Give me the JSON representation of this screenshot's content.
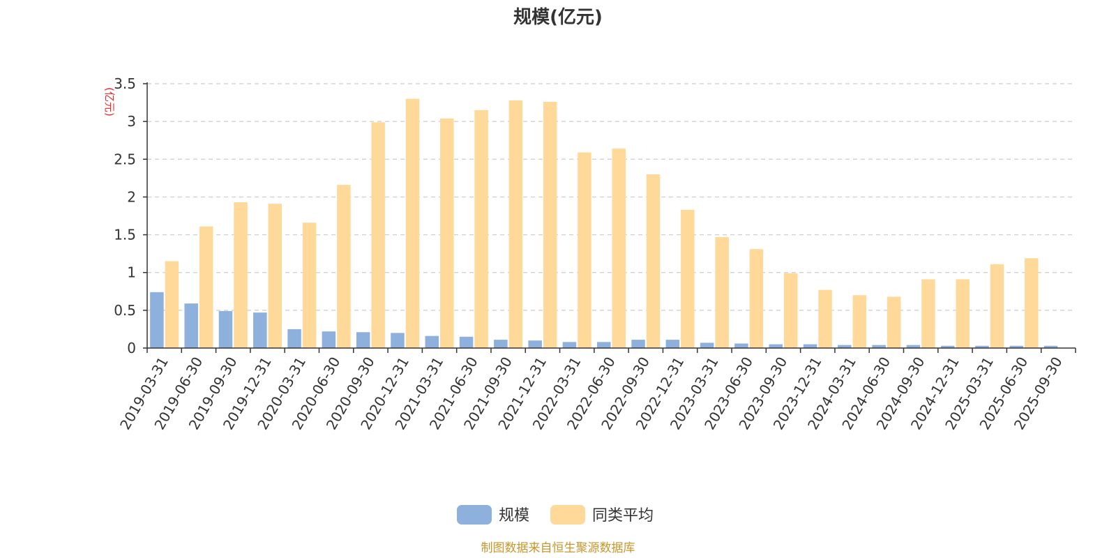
{
  "chart_data": {
    "type": "bar",
    "title": "规模(亿元)",
    "ylabel": "(亿元)",
    "ylim": [
      0,
      3.5
    ],
    "yticks": [
      0,
      0.5,
      1,
      1.5,
      2,
      2.5,
      3,
      3.5
    ],
    "ytick_labels": [
      "0",
      "0.5",
      "1",
      "1.5",
      "2",
      "2.5",
      "3",
      "3.5"
    ],
    "grid": true,
    "legend_position": "bottom-center",
    "categories": [
      "2019-03-31",
      "2019-06-30",
      "2019-09-30",
      "2019-12-31",
      "2020-03-31",
      "2020-06-30",
      "2020-09-30",
      "2020-12-31",
      "2021-03-31",
      "2021-06-30",
      "2021-09-30",
      "2021-12-31",
      "2022-03-31",
      "2022-06-30",
      "2022-09-30",
      "2022-12-31",
      "2023-03-31",
      "2023-06-30",
      "2023-09-30",
      "2023-12-31",
      "2024-03-31",
      "2024-06-30",
      "2024-09-30",
      "2024-12-31",
      "2025-03-31",
      "2025-06-30",
      "2025-09-30"
    ],
    "series": [
      {
        "name": "规模",
        "color": "#8eb0dd",
        "values": [
          0.74,
          0.59,
          0.49,
          0.47,
          0.25,
          0.22,
          0.21,
          0.2,
          0.16,
          0.15,
          0.11,
          0.1,
          0.08,
          0.08,
          0.11,
          0.11,
          0.07,
          0.06,
          0.05,
          0.05,
          0.04,
          0.04,
          0.04,
          0.03,
          0.03,
          0.03,
          0.03
        ]
      },
      {
        "name": "同类平均",
        "color": "#ffd99a",
        "values": [
          1.15,
          1.61,
          1.93,
          1.91,
          1.66,
          2.16,
          2.99,
          3.3,
          3.04,
          3.15,
          3.28,
          3.26,
          2.59,
          2.64,
          2.3,
          1.83,
          1.47,
          1.31,
          0.99,
          0.77,
          0.7,
          0.68,
          0.91,
          0.91,
          1.11,
          1.19,
          null
        ]
      }
    ]
  },
  "footer": {
    "source": "制图数据来自恒生聚源数据库",
    "source_color": "#c8962a"
  },
  "colors": {
    "unit_label": "#e8262b",
    "gridline": "#cccccc",
    "axis": "#333333"
  }
}
